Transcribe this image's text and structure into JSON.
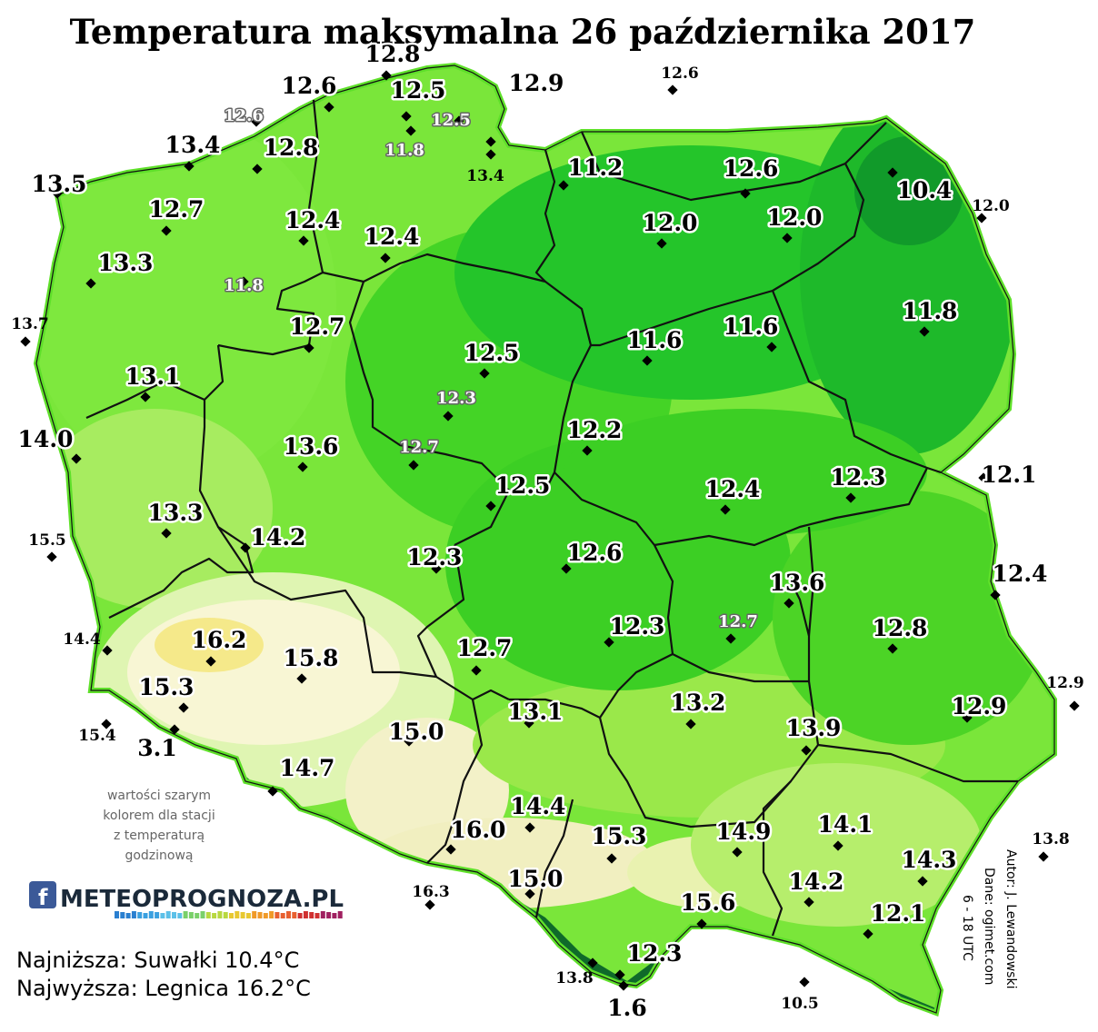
{
  "title": "Temperatura maksymalna 26 października 2017",
  "stations": [
    {
      "label": "12.8",
      "style": "normal"
    },
    {
      "label": "12.6",
      "style": "normal"
    },
    {
      "label": "12.5",
      "style": "normal"
    },
    {
      "label": "12.9",
      "style": "normal"
    },
    {
      "label": "12.6",
      "style": "small"
    },
    {
      "label": "12.6",
      "style": "grey"
    },
    {
      "label": "12.5",
      "style": "grey"
    },
    {
      "label": "13.4",
      "style": "normal"
    },
    {
      "label": "12.8",
      "style": "normal"
    },
    {
      "label": "11.8",
      "style": "grey"
    },
    {
      "label": "13.4",
      "style": "small"
    },
    {
      "label": "13.5",
      "style": "normal"
    },
    {
      "label": "11.2",
      "style": "normal"
    },
    {
      "label": "12.6",
      "style": "normal"
    },
    {
      "label": "10.4",
      "style": "normal"
    },
    {
      "label": "12.0",
      "style": "small"
    },
    {
      "label": "12.7",
      "style": "normal"
    },
    {
      "label": "12.4",
      "style": "normal"
    },
    {
      "label": "12.4",
      "style": "normal"
    },
    {
      "label": "12.0",
      "style": "normal"
    },
    {
      "label": "12.0",
      "style": "normal"
    },
    {
      "label": "13.3",
      "style": "normal"
    },
    {
      "label": "11.8",
      "style": "grey"
    },
    {
      "label": "13.7",
      "style": "small"
    },
    {
      "label": "12.7",
      "style": "normal"
    },
    {
      "label": "11.8",
      "style": "normal"
    },
    {
      "label": "11.6",
      "style": "normal"
    },
    {
      "label": "11.6",
      "style": "normal"
    },
    {
      "label": "12.5",
      "style": "normal"
    },
    {
      "label": "13.1",
      "style": "normal"
    },
    {
      "label": "12.3",
      "style": "grey"
    },
    {
      "label": "14.0",
      "style": "normal"
    },
    {
      "label": "13.6",
      "style": "normal"
    },
    {
      "label": "12.7",
      "style": "grey"
    },
    {
      "label": "12.2",
      "style": "normal"
    },
    {
      "label": "12.1",
      "style": "normal"
    },
    {
      "label": "12.5",
      "style": "normal"
    },
    {
      "label": "12.4",
      "style": "normal"
    },
    {
      "label": "12.3",
      "style": "normal"
    },
    {
      "label": "13.3",
      "style": "normal"
    },
    {
      "label": "15.5",
      "style": "small"
    },
    {
      "label": "14.2",
      "style": "normal"
    },
    {
      "label": "12.3",
      "style": "normal"
    },
    {
      "label": "12.6",
      "style": "normal"
    },
    {
      "label": "12.4",
      "style": "normal"
    },
    {
      "label": "13.6",
      "style": "normal"
    },
    {
      "label": "12.8",
      "style": "normal"
    },
    {
      "label": "14.4",
      "style": "small"
    },
    {
      "label": "16.2",
      "style": "normal"
    },
    {
      "label": "15.8",
      "style": "normal"
    },
    {
      "label": "12.7",
      "style": "normal"
    },
    {
      "label": "12.3",
      "style": "normal"
    },
    {
      "label": "12.7",
      "style": "grey"
    },
    {
      "label": "15.3",
      "style": "normal"
    },
    {
      "label": "12.9",
      "style": "small"
    },
    {
      "label": "13.1",
      "style": "normal"
    },
    {
      "label": "13.2",
      "style": "normal"
    },
    {
      "label": "12.9",
      "style": "normal"
    },
    {
      "label": "15.4",
      "style": "small"
    },
    {
      "label": "3.1",
      "style": "normal"
    },
    {
      "label": "15.0",
      "style": "normal"
    },
    {
      "label": "13.9",
      "style": "normal"
    },
    {
      "label": "14.7",
      "style": "normal"
    },
    {
      "label": "14.4",
      "style": "normal"
    },
    {
      "label": "14.1",
      "style": "normal"
    },
    {
      "label": "16.0",
      "style": "normal"
    },
    {
      "label": "15.3",
      "style": "normal"
    },
    {
      "label": "14.9",
      "style": "normal"
    },
    {
      "label": "13.8",
      "style": "small"
    },
    {
      "label": "14.3",
      "style": "normal"
    },
    {
      "label": "16.3",
      "style": "small"
    },
    {
      "label": "15.0",
      "style": "normal"
    },
    {
      "label": "14.2",
      "style": "normal"
    },
    {
      "label": "15.6",
      "style": "normal"
    },
    {
      "label": "12.1",
      "style": "normal"
    },
    {
      "label": "12.3",
      "style": "normal"
    },
    {
      "label": "13.8",
      "style": "small"
    },
    {
      "label": "10.5",
      "style": "small"
    },
    {
      "label": "1.6",
      "style": "normal"
    }
  ],
  "note": [
    "wartości szarym",
    "kolorem dla stacji",
    "z temperaturą",
    "godzinową"
  ],
  "logo": {
    "fb": "f",
    "text": "METEOPROGNOZA.PL"
  },
  "stats": {
    "min": "Najniższa: Suwałki 10.4°C",
    "max": "Najwyższa: Legnica 16.2°C"
  },
  "credits": [
    "Autor: J. Lewandowski",
    "Dane: ogimet.com",
    "6 - 18 UTC"
  ],
  "colors": {
    "hot": "#fbf7d6",
    "warm": "#cdf08a",
    "mild": "#8ee63a",
    "cool": "#4fd822",
    "cold": "#22c42a",
    "mountain": "#0d6a2a",
    "border": "#111111"
  }
}
